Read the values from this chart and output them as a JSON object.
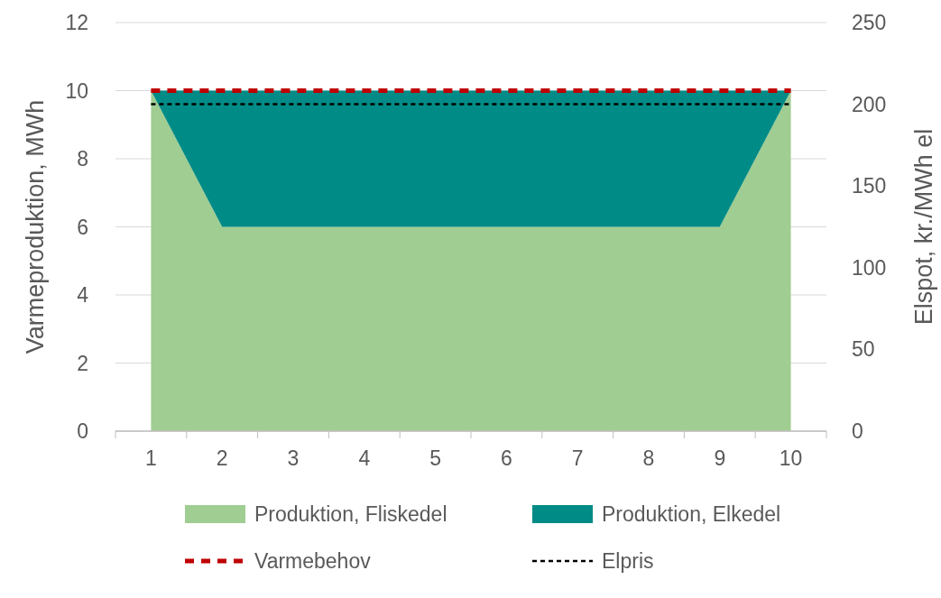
{
  "chart_data": {
    "type": "area",
    "stacked": true,
    "categories": [
      "1",
      "2",
      "3",
      "4",
      "5",
      "6",
      "7",
      "8",
      "9",
      "10"
    ],
    "ylabel": "Varmeproduktion, MWh",
    "y2label": "Elspot, kr./MWh el",
    "ylim": [
      0,
      12
    ],
    "yticks": [
      0,
      2,
      4,
      6,
      8,
      10,
      12
    ],
    "y2lim": [
      0,
      250
    ],
    "y2ticks": [
      0,
      50,
      100,
      150,
      200,
      250
    ],
    "grid": "y",
    "legend": "bottom",
    "series": [
      {
        "name": "Produktion, Fliskedel",
        "color": "#a0cd91",
        "values": [
          10,
          6,
          6,
          6,
          6,
          6,
          6,
          6,
          6,
          10
        ]
      },
      {
        "name": "Produktion, Elkedel",
        "color": "#008b86",
        "values": [
          0,
          4,
          4,
          4,
          4,
          4,
          4,
          4,
          4,
          0
        ]
      },
      {
        "name": "Varmebehov",
        "type": "line",
        "line_style": "dashed",
        "color": "#c00000",
        "values": [
          10,
          10,
          10,
          10,
          10,
          10,
          10,
          10,
          10,
          10
        ]
      },
      {
        "name": "Elpris",
        "type": "line",
        "axis": "y2",
        "line_style": "dashed",
        "color": "#000000",
        "values": [
          200,
          200,
          200,
          200,
          200,
          200,
          200,
          200,
          200,
          200
        ]
      }
    ]
  }
}
